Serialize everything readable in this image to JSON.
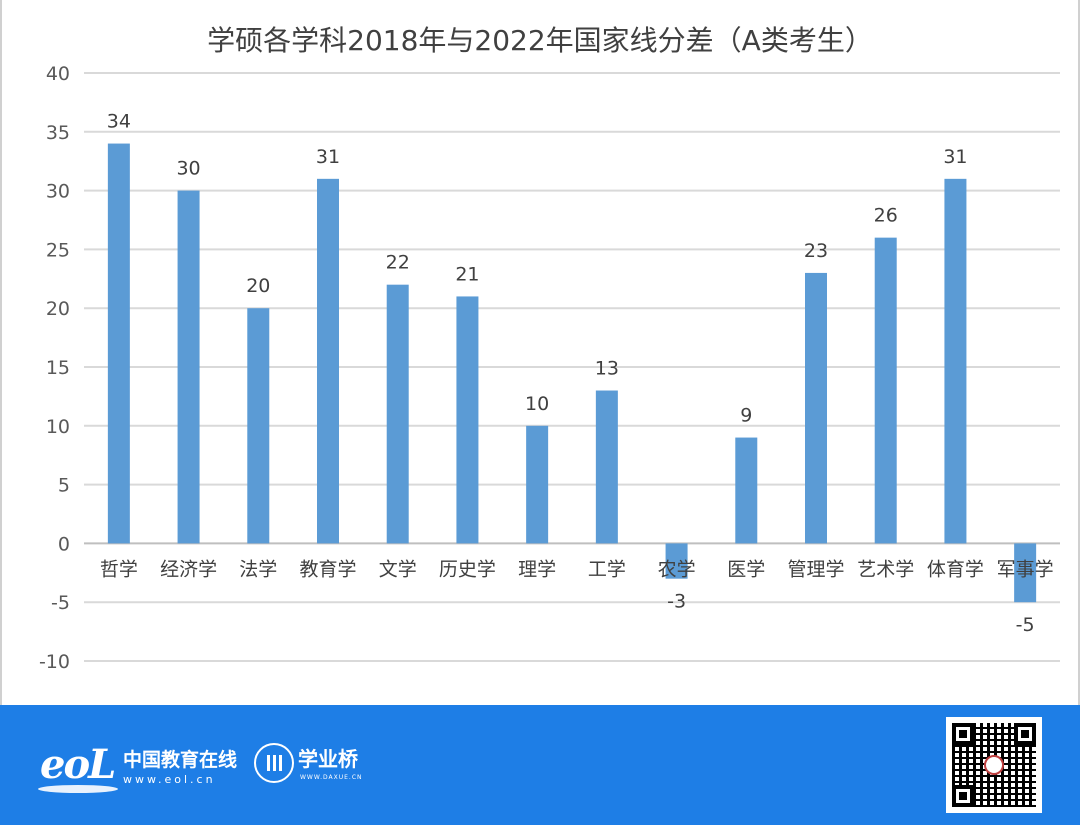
{
  "chart_data": {
    "type": "bar",
    "title": "学硕各学科2018年与2022年国家线分差（A类考生）",
    "categories": [
      "哲学",
      "经济学",
      "法学",
      "教育学",
      "文学",
      "历史学",
      "理学",
      "工学",
      "农学",
      "医学",
      "管理学",
      "艺术学",
      "体育学",
      "军事学"
    ],
    "values": [
      34,
      30,
      20,
      31,
      22,
      21,
      10,
      13,
      -3,
      9,
      23,
      26,
      31,
      -5
    ],
    "ylim": [
      -10,
      40
    ],
    "yticks": [
      -10,
      -5,
      0,
      5,
      10,
      15,
      20,
      25,
      30,
      35,
      40
    ],
    "grid": true,
    "bar_color": "#5b9bd5",
    "grid_color": "#d9d9d9",
    "xlabel": "",
    "ylabel": ""
  },
  "footer": {
    "background": "#1e7ee6",
    "eol_logo_text": "eoL",
    "eol_name": "中国教育在线",
    "eol_url": "www.eol.cn",
    "xqq_name": "学业桥",
    "xqq_url": "WWW.DAXUE.CN",
    "qr_icon": "qr-code-icon"
  }
}
